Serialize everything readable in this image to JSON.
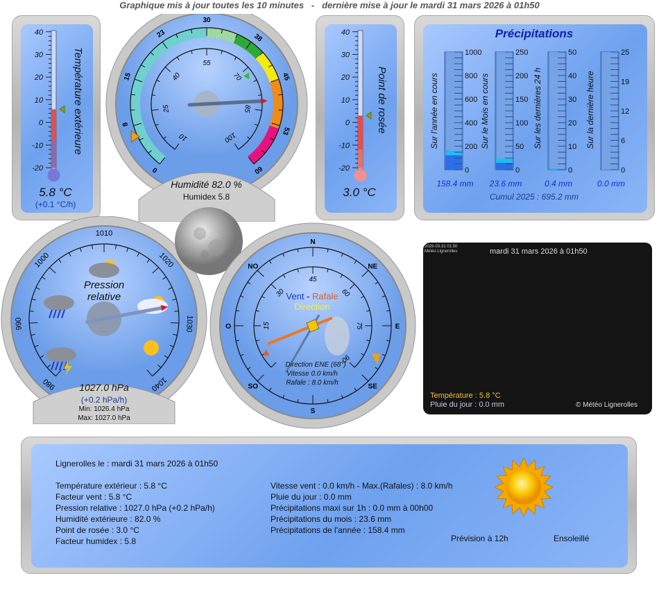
{
  "header": "Graphique mis à jour toutes les 10 minutes   -   dernière mise à jour le mardi 31 mars 2026 à 01h50",
  "temperature": {
    "label": "Température extérieure",
    "value": "5.8 °C",
    "trend": "(+0.1 °C/h)",
    "reading": 5.8,
    "scale": [
      -20,
      -10,
      0,
      10,
      20,
      30,
      40
    ],
    "color": "#e05050"
  },
  "dewpoint": {
    "label": "Point de rosée",
    "value": "3.0 °C",
    "reading": 3.0,
    "scale": [
      -20,
      -10,
      0,
      10,
      20,
      30,
      40
    ],
    "color": "#e05050"
  },
  "humidity": {
    "title": "Humidité 82.0  %",
    "humidex": "Humidex 5.8",
    "reading": 82.0,
    "humidex_reading": 5.8,
    "outer_scale": [
      "0",
      "8",
      "15",
      "23",
      "30",
      "38",
      "45",
      "53",
      "60"
    ],
    "inner_scale": [
      "10",
      "25",
      "40",
      "55",
      "70",
      "85",
      "100"
    ],
    "bands": [
      {
        "from": 0,
        "to": 30,
        "color": "#6fd0cf"
      },
      {
        "from": 30,
        "to": 35,
        "color": "#9fd8a0"
      },
      {
        "from": 35,
        "to": 40,
        "color": "#2fa83a"
      },
      {
        "from": 40,
        "to": 45,
        "color": "#f2ea10"
      },
      {
        "from": 45,
        "to": 53,
        "color": "#ef8a1c"
      },
      {
        "from": 53,
        "to": 60,
        "color": "#e8127e"
      }
    ]
  },
  "precipitation": {
    "title": "Précipitations",
    "cumul": "Cumul 2025 : 695.2 mm",
    "gauges": [
      {
        "label": "Sur l'année en cours",
        "value": "158.4 mm",
        "reading": 158.4,
        "max": 1000,
        "ticks": [
          "1000",
          "800",
          "600",
          "400",
          "200",
          "0"
        ]
      },
      {
        "label": "Sur le Mois en cours",
        "value": "23.6 mm",
        "reading": 23.6,
        "max": 250,
        "ticks": [
          "250",
          "200",
          "150",
          "100",
          "50",
          "0"
        ]
      },
      {
        "label": "Sur les dernières 24 h",
        "value": "0.4 mm",
        "reading": 0.4,
        "max": 50,
        "ticks": [
          "50",
          "40",
          "30",
          "20",
          "10",
          "0"
        ]
      },
      {
        "label": "Sur la dernière heure",
        "value": "0.0 mm",
        "reading": 0.0,
        "max": 25,
        "ticks": [
          "25",
          "19",
          "12",
          "6",
          "0"
        ]
      }
    ]
  },
  "pressure": {
    "title1": "Pression",
    "title2": "relative",
    "value": "1027.0 hPa",
    "trend": "(+0.2 hPa/h)",
    "min": "Min: 1026.4 hPa",
    "max": "Max: 1027.0 hPa",
    "reading": 1027.0,
    "scale": [
      "980",
      "990",
      "1000",
      "1010",
      "1020",
      "1030",
      "1040"
    ],
    "icons": [
      "cloud-sun-icon",
      "rain-icon",
      "storm-icon",
      "sun-cloud-icon",
      "sun-icon"
    ]
  },
  "wind": {
    "title_wind": "Vent",
    "sep": " - ",
    "title_gust": "Rafale",
    "title_dir": "Direction",
    "direction": "Direction ENE (68°)",
    "speed": "Vitesse 0.0 km/h",
    "gust": "Rafale : 8.0 km/h",
    "direction_deg": 68,
    "compass": [
      "N",
      "NE",
      "E",
      "SE",
      "S",
      "SO",
      "O",
      "NO"
    ],
    "speed_scale": [
      "15",
      "30",
      "45",
      "60",
      "75",
      "90"
    ]
  },
  "webcam": {
    "stamp": "2026-03-31 01:50",
    "site": "Météo Lignerolles",
    "date": "mardi 31 mars 2026 à 01h50",
    "temp": "Température : 5.8 °C",
    "rain": "Pluie  du  jour : 0.0 mm",
    "copyright": "© Météo Lignerolles"
  },
  "summary": {
    "title": "Lignerolles le : mardi 31 mars 2026 à 01h50",
    "left": [
      "Température extérieur : 5.8 °C",
      "Facteur vent : 5.8 °C",
      "Pression relative : 1027.0 hPa (+0.2 hPa/h)",
      "Humidité extérieure : 82.0 %",
      "Point de rosée : 3.0 °C",
      "Facteur humidex : 5.8"
    ],
    "right": [
      "Vitesse vent : 0.0 km/h - Max.(Rafales) : 8.0 km/h",
      "Pluie du jour : 0.0 mm",
      "Précipitations maxi sur 1h : 0.0 mm à 00h00",
      "Précipitations du mois : 23.6 mm",
      "Précipitations de l'année : 158.4 mm"
    ],
    "forecast_label": "Prévision à 12h",
    "forecast": "Ensoleillé"
  }
}
